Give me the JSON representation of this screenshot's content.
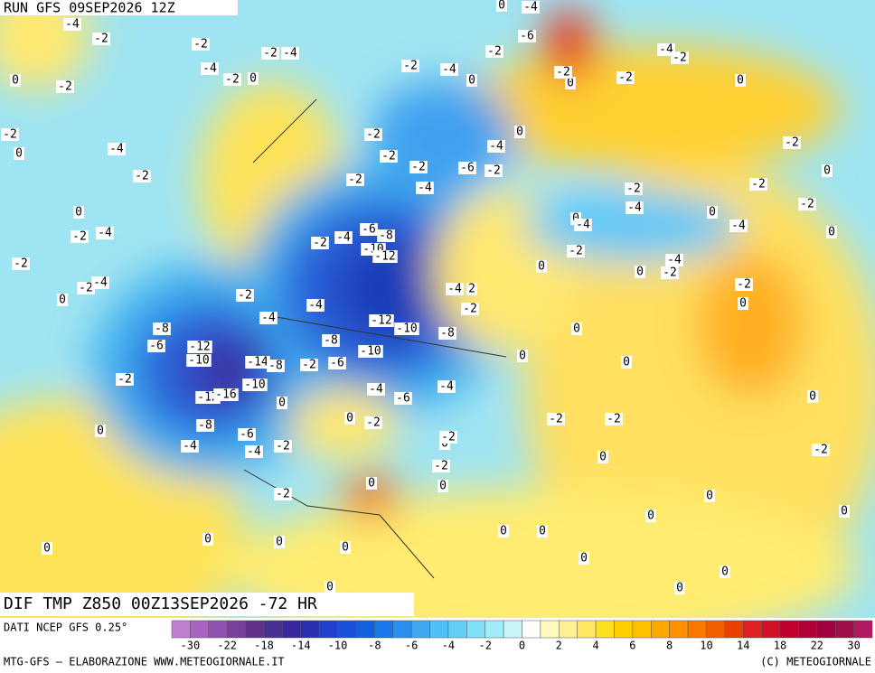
{
  "header": {
    "run": "RUN GFS 09SEP2026 12Z"
  },
  "footer": {
    "title": "DIF TMP Z850 00Z13SEP2026 -72 HR",
    "data_source": "DATI NCEP GFS 0.25°",
    "credit": "MTG-GFS — ELABORAZIONE WWW.METEOGIORNALE.IT",
    "copyright": "(C) METEOGIORNALE"
  },
  "map": {
    "contour_labels": [
      -4,
      -2,
      -2,
      -4,
      0,
      -2,
      -2,
      -2,
      -4,
      0,
      -2,
      -4,
      0,
      -2,
      0,
      -2,
      -4,
      -2,
      -2,
      -4,
      0,
      -8,
      -6,
      -12,
      -10,
      -2,
      -14,
      -8,
      -10,
      -12,
      -16,
      -8,
      -6,
      0,
      -4,
      -4,
      -2,
      -2,
      0,
      0,
      -2,
      -4,
      -4,
      -2,
      -4,
      -6,
      -8,
      -10,
      -12,
      -8,
      -2,
      -6,
      -10,
      -12,
      -10,
      -8,
      -4,
      -4,
      -6,
      0,
      -2,
      0,
      -2,
      -4,
      0,
      -4,
      -6,
      -2,
      -2,
      -4,
      0,
      0,
      -2,
      0,
      -4,
      -2,
      0,
      -2,
      -2,
      -2,
      -6,
      -2,
      -4,
      -2,
      0,
      -2,
      -2,
      -2,
      -4,
      0,
      -4,
      0,
      -4,
      -2,
      0,
      -2,
      0,
      0,
      -2,
      -4,
      -2,
      0,
      -4,
      2,
      -2,
      0,
      0,
      0,
      0,
      -2,
      -2,
      -2,
      0,
      -2,
      -2,
      0,
      0,
      0,
      0,
      0,
      0,
      0,
      0,
      0,
      0,
      0,
      0,
      0,
      0
    ]
  },
  "colorbar": {
    "colors": [
      "#c080d0",
      "#a864c0",
      "#9050b0",
      "#784098",
      "#603088",
      "#483090",
      "#3828a0",
      "#2830b0",
      "#2040c8",
      "#1850d8",
      "#1060e0",
      "#1878e8",
      "#2890f0",
      "#40a8f0",
      "#50c0f8",
      "#60d0f8",
      "#80e0f8",
      "#a0ecf8",
      "#c8f4f8",
      "#ffffff",
      "#fff8c0",
      "#fff090",
      "#ffe860",
      "#ffe020",
      "#ffd000",
      "#ffc000",
      "#ffa800",
      "#ff9000",
      "#f87800",
      "#f06000",
      "#e84000",
      "#e02020",
      "#d01028",
      "#c00030",
      "#b00038",
      "#a00040",
      "#a01048",
      "#b01860"
    ],
    "ticks": [
      -30,
      -22,
      -18,
      -14,
      -10,
      -8,
      -6,
      -4,
      -2,
      0,
      2,
      4,
      6,
      8,
      10,
      14,
      18,
      22,
      30
    ]
  }
}
